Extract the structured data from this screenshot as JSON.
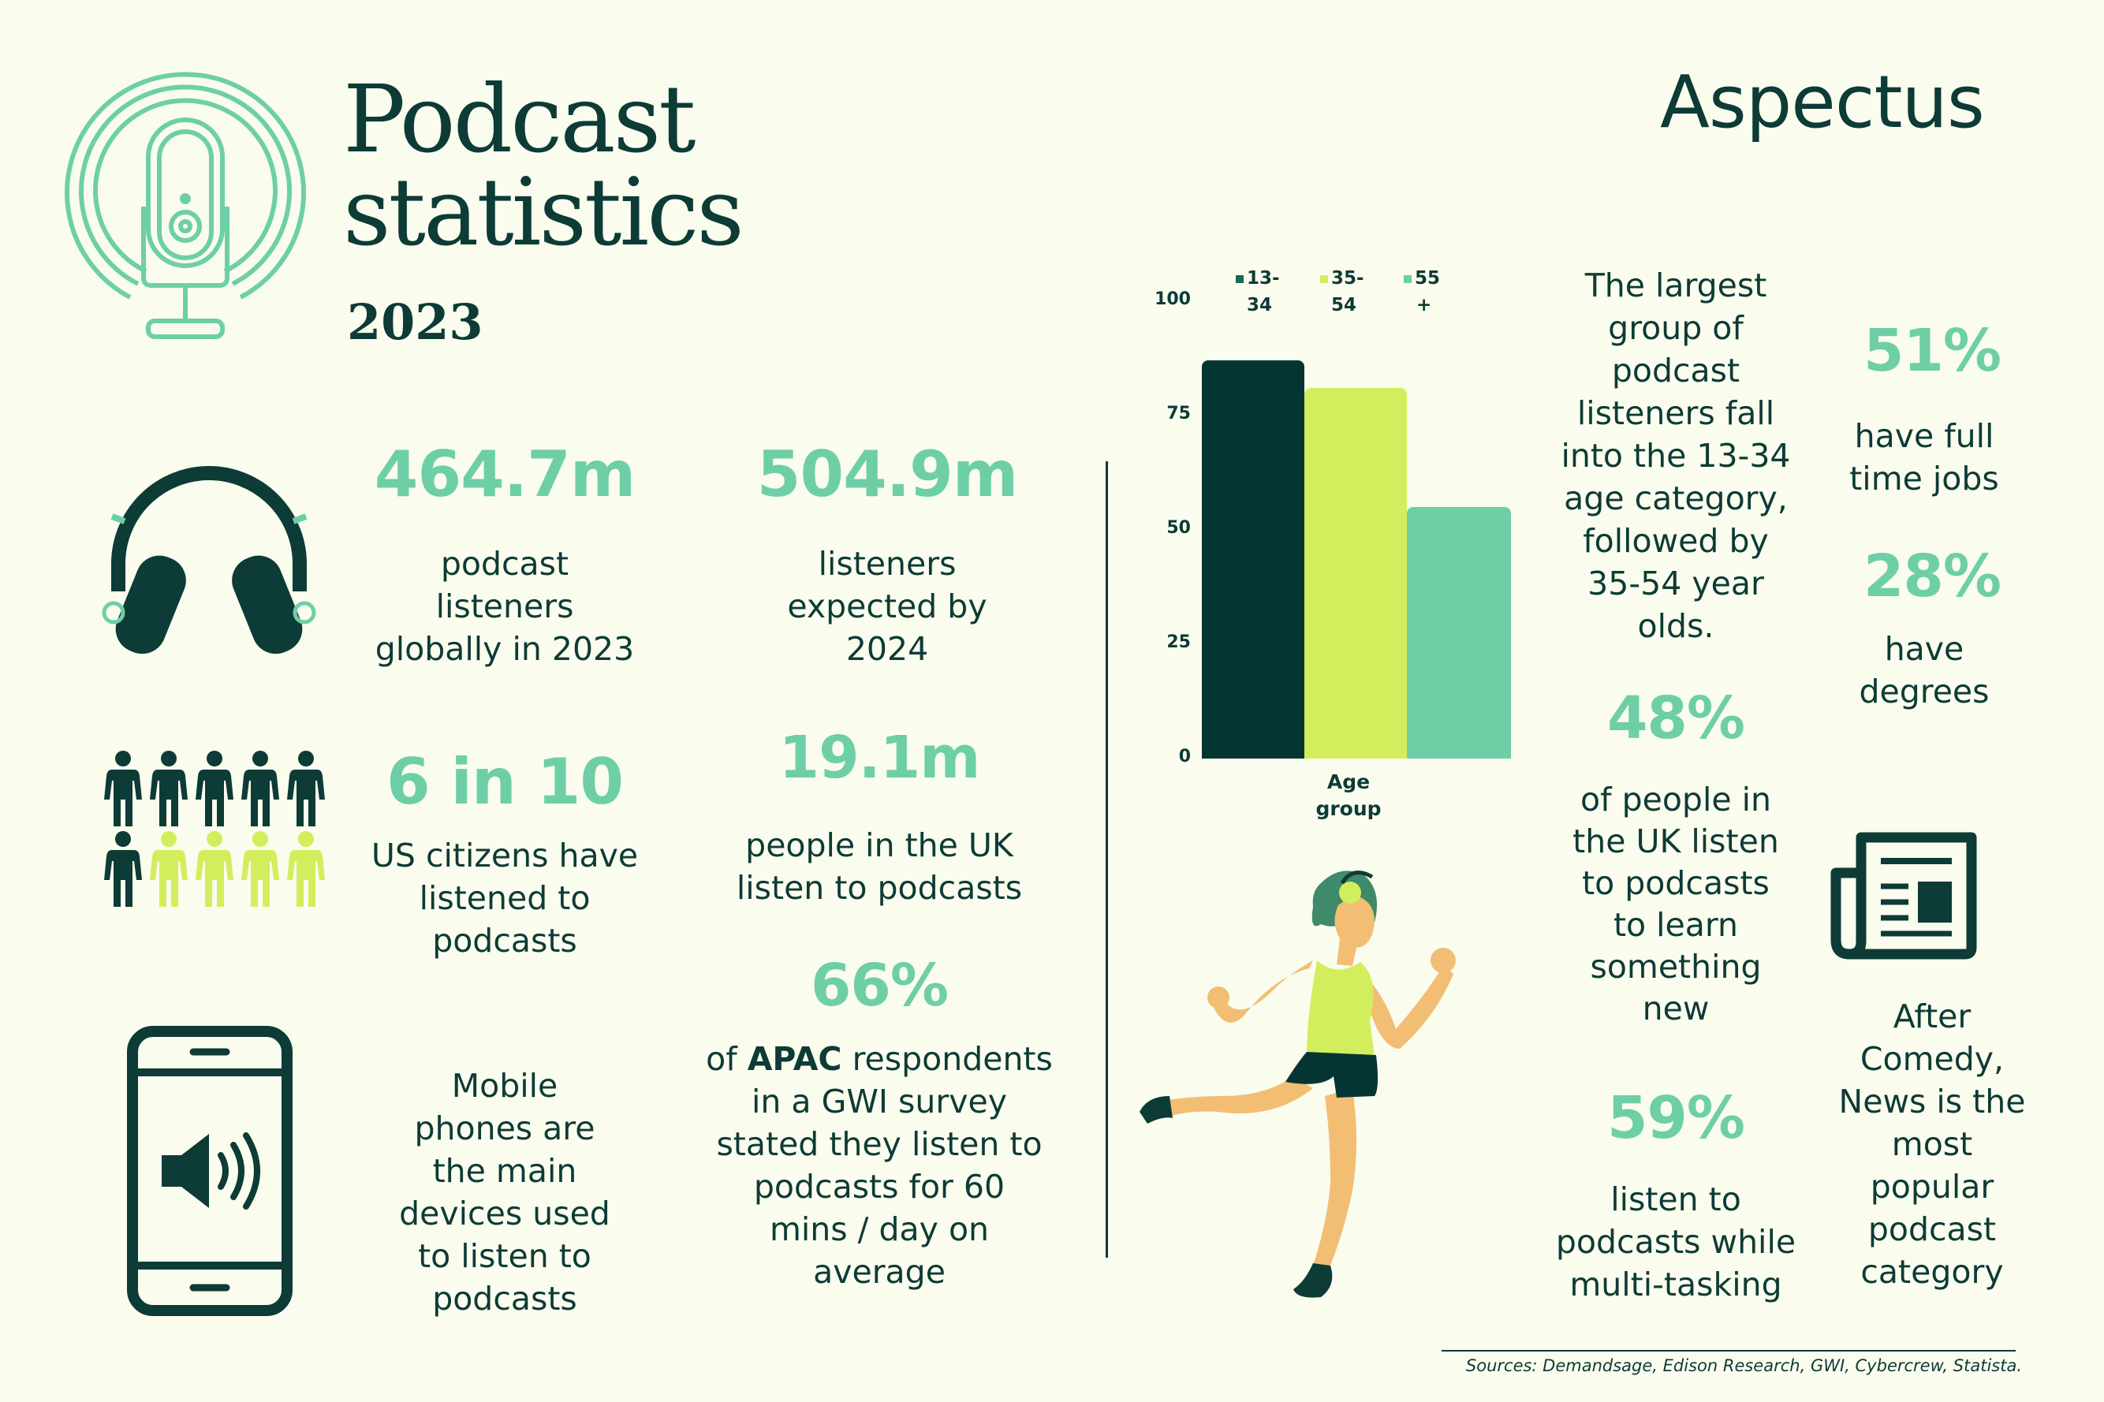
{
  "header": {
    "title_line1": "Podcast",
    "title_line2": "statistics",
    "year": "2023",
    "brand": "Aspectus"
  },
  "stats": {
    "listeners_2023": {
      "value": "464.7m",
      "line1": "podcast",
      "line2": "listeners",
      "line3": "globally in 2023"
    },
    "listeners_2024": {
      "value": "504.9m",
      "line1": "listeners",
      "line2": "expected by",
      "line3": "2024"
    },
    "us_citizens": {
      "value": "6 in 10",
      "line1": "US citizens have",
      "line2": "listened to",
      "line3": "podcasts"
    },
    "uk_people": {
      "value": "19.1m",
      "line1": "people in the UK",
      "line2": "listen to podcasts"
    },
    "mobile": {
      "line1": "Mobile",
      "line2": "phones are",
      "line3": "the main",
      "line4": "devices used",
      "line5": "to listen to",
      "line6": "podcasts"
    },
    "apac": {
      "value": "66%",
      "line1_pre": "of ",
      "line1_bold": "APAC",
      "line1_post": " respondents",
      "line2": "in a GWI survey",
      "line3": "stated they listen to",
      "line4": "podcasts for  60",
      "line5": "mins / day on",
      "line6": "average"
    },
    "largest_group": {
      "line1": "The largest",
      "line2": "group of",
      "line3": "podcast",
      "line4": "listeners fall",
      "line5": "into the 13-34",
      "line6": "age category,",
      "line7": "followed by",
      "line8": "35-54 year",
      "line9": "olds."
    },
    "full_time": {
      "value": "51%",
      "line1": "have full",
      "line2": "time jobs"
    },
    "degrees": {
      "value": "28%",
      "line1": "have",
      "line2": "degrees"
    },
    "learn": {
      "value": "48%",
      "line1": "of people in",
      "line2": "the  UK listen",
      "line3": "to podcasts",
      "line4": "to learn",
      "line5": "something",
      "line6": "new"
    },
    "multitask": {
      "value": "59%",
      "line1": "listen to",
      "line2": "podcasts while",
      "line3": "multi-tasking"
    },
    "news": {
      "line1": "After",
      "line2": "Comedy,",
      "line3": "News is the",
      "line4": "most",
      "line5": "popular",
      "line6": "podcast",
      "line7": "category"
    }
  },
  "sources": "Sources: Demandsage, Edison Research, GWI, Cybercrew, Statista.",
  "chart_data": {
    "type": "bar",
    "xlabel_line1": "Age",
    "xlabel_line2": "group",
    "ylim": [
      0,
      100
    ],
    "yticks": [
      "0",
      "25",
      "50",
      "75",
      "100"
    ],
    "series": [
      {
        "name_line1": "13-",
        "name_line2": "34",
        "value": 87,
        "color": "#053532"
      },
      {
        "name_line1": "35-",
        "name_line2": "54",
        "value": 81,
        "color": "#D3EE5C"
      },
      {
        "name_line1": "55",
        "name_line2": "+",
        "value": 55,
        "color": "#6ECFA6"
      }
    ]
  },
  "colors": {
    "background": "#FAFCEE",
    "dark": "#0D3B36",
    "mint": "#6ECFA6",
    "lime": "#D3EE5C",
    "skin": "#F2BE73"
  },
  "icons": [
    "microphone-icon",
    "headphones-icon",
    "people-icon",
    "phone-speaker-icon",
    "newspaper-icon",
    "runner-illustration"
  ]
}
